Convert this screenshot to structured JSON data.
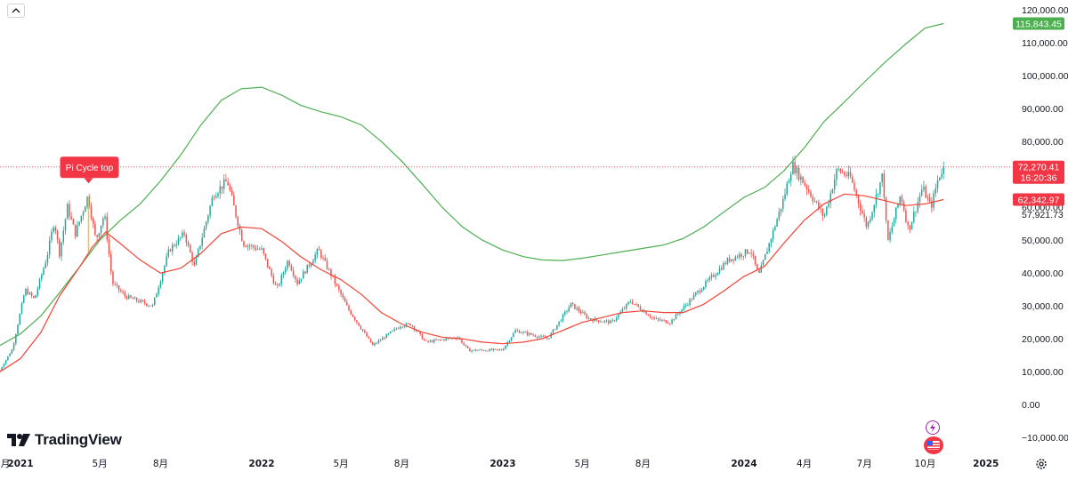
{
  "brand": {
    "name": "TradingView"
  },
  "icons": {
    "collapse": "chevron-up-icon",
    "settings": "gear-icon",
    "event_lightning": "lightning-icon",
    "event_flag": "us-flag-icon"
  },
  "colors": {
    "candle_up": "#26a69a",
    "candle_down": "#ef5350",
    "ma_long": "#4caf50",
    "ma_short": "#f44336",
    "price_line": "#ef5350",
    "annotation_bg": "#f23645",
    "pi_marker": "#fbc02d"
  },
  "chart_data": {
    "type": "candlestick",
    "title": "",
    "scale": "linear",
    "ylim": [
      -14000,
      123000
    ],
    "y_ticks": [
      -10000,
      0,
      10000,
      20000,
      30000,
      40000,
      50000,
      60000,
      70000,
      80000,
      90000,
      100000,
      110000,
      120000
    ],
    "y_tick_labels": [
      "−10,000.00",
      "0.00",
      "10,000.00",
      "20,000.00",
      "30,000.00",
      "40,000.00",
      "50,000.00",
      "60,000.00",
      "70,000.00",
      "80,000.00",
      "90,000.00",
      "100,000.00",
      "110,000.00",
      "120,000.00"
    ],
    "x_start": "2020-12-01",
    "x_end": "2025-01-31",
    "x_ticks": [
      {
        "date": "2020-12-01",
        "label": "月"
      },
      {
        "date": "2021-01-01",
        "label": "2021"
      },
      {
        "date": "2021-05-01",
        "label": "5月"
      },
      {
        "date": "2021-08-01",
        "label": "8月"
      },
      {
        "date": "2022-01-01",
        "label": "2022"
      },
      {
        "date": "2022-05-01",
        "label": "5月"
      },
      {
        "date": "2022-08-01",
        "label": "8月"
      },
      {
        "date": "2023-01-01",
        "label": "2023"
      },
      {
        "date": "2023-05-01",
        "label": "5月"
      },
      {
        "date": "2023-08-01",
        "label": "8月"
      },
      {
        "date": "2024-01-01",
        "label": "2024"
      },
      {
        "date": "2024-04-01",
        "label": "4月"
      },
      {
        "date": "2024-07-01",
        "label": "7月"
      },
      {
        "date": "2024-10-01",
        "label": "10月"
      },
      {
        "date": "2025-01-01",
        "label": "2025"
      }
    ],
    "price_path": [
      [
        "2020-12-01",
        10500
      ],
      [
        "2020-12-20",
        17000
      ],
      [
        "2021-01-08",
        35000
      ],
      [
        "2021-01-22",
        32000
      ],
      [
        "2021-02-10",
        45000
      ],
      [
        "2021-02-21",
        56000
      ],
      [
        "2021-03-01",
        46000
      ],
      [
        "2021-03-13",
        60000
      ],
      [
        "2021-03-25",
        52000
      ],
      [
        "2021-04-13",
        63500
      ],
      [
        "2021-04-25",
        50000
      ],
      [
        "2021-05-08",
        58000
      ],
      [
        "2021-05-20",
        37000
      ],
      [
        "2021-06-08",
        33000
      ],
      [
        "2021-06-21",
        32000
      ],
      [
        "2021-07-20",
        30000
      ],
      [
        "2021-08-14",
        47000
      ],
      [
        "2021-09-06",
        52000
      ],
      [
        "2021-09-21",
        42000
      ],
      [
        "2021-10-20",
        64000
      ],
      [
        "2021-11-10",
        68000
      ],
      [
        "2021-12-04",
        49000
      ],
      [
        "2022-01-01",
        47000
      ],
      [
        "2022-01-24",
        35000
      ],
      [
        "2022-02-10",
        44000
      ],
      [
        "2022-02-24",
        37000
      ],
      [
        "2022-03-28",
        47000
      ],
      [
        "2022-05-12",
        29000
      ],
      [
        "2022-06-18",
        18000
      ],
      [
        "2022-07-30",
        24000
      ],
      [
        "2022-08-15",
        24500
      ],
      [
        "2022-09-06",
        19000
      ],
      [
        "2022-10-25",
        20500
      ],
      [
        "2022-11-10",
        16500
      ],
      [
        "2022-12-31",
        16600
      ],
      [
        "2023-01-20",
        22500
      ],
      [
        "2023-03-10",
        20000
      ],
      [
        "2023-04-14",
        30500
      ],
      [
        "2023-05-12",
        26000
      ],
      [
        "2023-06-15",
        25000
      ],
      [
        "2023-07-13",
        31500
      ],
      [
        "2023-08-18",
        26000
      ],
      [
        "2023-09-11",
        25000
      ],
      [
        "2023-10-24",
        34500
      ],
      [
        "2023-12-08",
        44000
      ],
      [
        "2024-01-11",
        47000
      ],
      [
        "2024-01-23",
        39000
      ],
      [
        "2024-02-29",
        62000
      ],
      [
        "2024-03-14",
        73000
      ],
      [
        "2024-04-05",
        66000
      ],
      [
        "2024-05-01",
        57000
      ],
      [
        "2024-05-21",
        71500
      ],
      [
        "2024-06-10",
        69000
      ],
      [
        "2024-07-05",
        54000
      ],
      [
        "2024-07-29",
        70000
      ],
      [
        "2024-08-05",
        49000
      ],
      [
        "2024-08-25",
        64000
      ],
      [
        "2024-09-06",
        53000
      ],
      [
        "2024-09-27",
        66000
      ],
      [
        "2024-10-10",
        60000
      ],
      [
        "2024-10-21",
        69000
      ],
      [
        "2024-10-29",
        72270
      ]
    ],
    "series": [
      {
        "points": [
          [
            "2020-12-01",
            18000
          ],
          [
            "2021-01-01",
            21500
          ],
          [
            "2021-02-01",
            27000
          ],
          [
            "2021-03-01",
            34000
          ],
          [
            "2021-04-01",
            42000
          ],
          [
            "2021-05-01",
            50000
          ],
          [
            "2021-06-01",
            56000
          ],
          [
            "2021-07-01",
            61000
          ],
          [
            "2021-08-01",
            68000
          ],
          [
            "2021-09-01",
            76000
          ],
          [
            "2021-10-01",
            85000
          ],
          [
            "2021-11-01",
            92500
          ],
          [
            "2021-12-01",
            96000
          ],
          [
            "2022-01-01",
            96500
          ],
          [
            "2022-02-01",
            94000
          ],
          [
            "2022-03-01",
            91000
          ],
          [
            "2022-04-01",
            89000
          ],
          [
            "2022-05-01",
            87500
          ],
          [
            "2022-06-01",
            85000
          ],
          [
            "2022-07-01",
            80000
          ],
          [
            "2022-08-01",
            74000
          ],
          [
            "2022-09-01",
            67000
          ],
          [
            "2022-10-01",
            60000
          ],
          [
            "2022-11-01",
            54000
          ],
          [
            "2022-12-01",
            50000
          ],
          [
            "2023-01-01",
            47000
          ],
          [
            "2023-02-01",
            45000
          ],
          [
            "2023-03-01",
            44000
          ],
          [
            "2023-04-01",
            43800
          ],
          [
            "2023-05-01",
            44500
          ],
          [
            "2023-06-01",
            45500
          ],
          [
            "2023-07-01",
            46500
          ],
          [
            "2023-08-01",
            47500
          ],
          [
            "2023-09-01",
            48500
          ],
          [
            "2023-10-01",
            50500
          ],
          [
            "2023-11-01",
            54000
          ],
          [
            "2023-12-01",
            58500
          ],
          [
            "2024-01-01",
            63000
          ],
          [
            "2024-02-01",
            66000
          ],
          [
            "2024-03-01",
            71000
          ],
          [
            "2024-04-01",
            78000
          ],
          [
            "2024-05-01",
            86000
          ],
          [
            "2024-06-01",
            92000
          ],
          [
            "2024-07-01",
            98000
          ],
          [
            "2024-08-01",
            104000
          ],
          [
            "2024-09-01",
            109500
          ],
          [
            "2024-10-01",
            114500
          ],
          [
            "2024-10-29",
            115843.45
          ]
        ]
      },
      {
        "points": [
          [
            "2020-12-01",
            10000
          ],
          [
            "2021-01-01",
            14000
          ],
          [
            "2021-02-01",
            22000
          ],
          [
            "2021-03-01",
            33000
          ],
          [
            "2021-04-01",
            42000
          ],
          [
            "2021-04-20",
            48000
          ],
          [
            "2021-05-10",
            52500
          ],
          [
            "2021-06-01",
            49000
          ],
          [
            "2021-07-01",
            44000
          ],
          [
            "2021-08-01",
            40000
          ],
          [
            "2021-09-01",
            41500
          ],
          [
            "2021-10-01",
            46000
          ],
          [
            "2021-11-01",
            52000
          ],
          [
            "2021-12-01",
            54000
          ],
          [
            "2022-01-01",
            53500
          ],
          [
            "2022-02-01",
            49500
          ],
          [
            "2022-03-01",
            45000
          ],
          [
            "2022-04-01",
            41000
          ],
          [
            "2022-05-01",
            38000
          ],
          [
            "2022-06-01",
            33500
          ],
          [
            "2022-07-01",
            28000
          ],
          [
            "2022-08-01",
            24500
          ],
          [
            "2022-09-01",
            22000
          ],
          [
            "2022-10-01",
            20500
          ],
          [
            "2022-11-01",
            20000
          ],
          [
            "2022-12-01",
            19000
          ],
          [
            "2023-01-01",
            18500
          ],
          [
            "2023-02-01",
            19000
          ],
          [
            "2023-03-01",
            20000
          ],
          [
            "2023-04-01",
            22500
          ],
          [
            "2023-05-01",
            25000
          ],
          [
            "2023-06-01",
            26500
          ],
          [
            "2023-07-01",
            28000
          ],
          [
            "2023-08-01",
            28500
          ],
          [
            "2023-09-01",
            28000
          ],
          [
            "2023-10-01",
            28000
          ],
          [
            "2023-11-01",
            30500
          ],
          [
            "2023-12-01",
            34500
          ],
          [
            "2024-01-01",
            39000
          ],
          [
            "2024-02-01",
            42000
          ],
          [
            "2024-03-01",
            49000
          ],
          [
            "2024-04-01",
            56000
          ],
          [
            "2024-05-01",
            61000
          ],
          [
            "2024-06-01",
            64000
          ],
          [
            "2024-07-01",
            63500
          ],
          [
            "2024-08-01",
            62000
          ],
          [
            "2024-09-01",
            60500
          ],
          [
            "2024-10-01",
            61000
          ],
          [
            "2024-10-29",
            62342.97
          ]
        ]
      }
    ],
    "price_tags": [
      {
        "label": "115,843.45",
        "value": 115843.45,
        "color": "#4caf50"
      },
      {
        "label": "72,270.41",
        "label2": "16:20:36",
        "value": 72270.41,
        "color": "#f23645"
      },
      {
        "label": "62,342.97",
        "value": 62342.97,
        "color": "#f23645"
      },
      {
        "label": "57,921.73",
        "value": 57921.73,
        "color": "plain"
      }
    ],
    "current_price": 72270.41,
    "annotations": [
      {
        "text": "Pi Cycle top",
        "date": "2021-04-14",
        "value": 63500
      }
    ],
    "grid": false,
    "legend": "none"
  }
}
